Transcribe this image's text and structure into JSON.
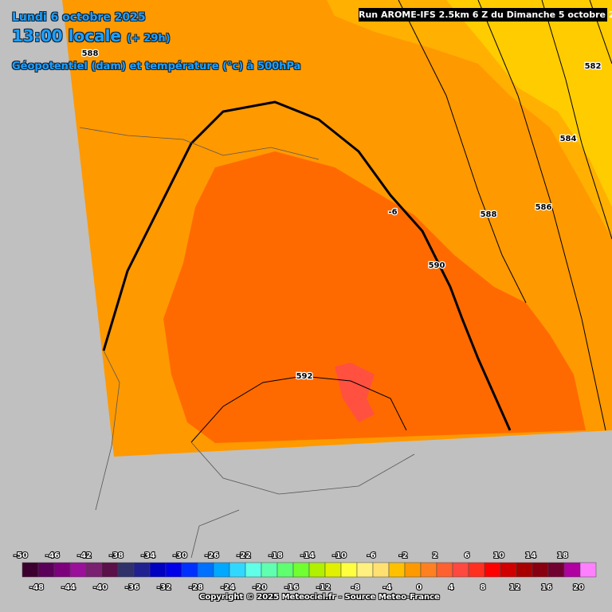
{
  "header": {
    "date": "Lundi 6 octobre 2025",
    "time": "13:00 locale",
    "lead": "(+ 29h)",
    "parameter": "Géopotentiel (dam) et température (°c) à 500hPa",
    "run": "Run AROME-IFS 2.5km 6 Z du Dimanche 5 octobre 2025"
  },
  "contour_labels": [
    {
      "text": "588"
    },
    {
      "text": "582"
    },
    {
      "text": "584"
    },
    {
      "text": "586"
    },
    {
      "text": "588"
    },
    {
      "text": "590"
    },
    {
      "text": "-6"
    },
    {
      "text": "592"
    }
  ],
  "legend": {
    "labels": [
      -50,
      -48,
      -46,
      -44,
      -42,
      -40,
      -38,
      -36,
      -34,
      -32,
      -30,
      -28,
      -26,
      -24,
      -22,
      -20,
      -18,
      -16,
      -14,
      -12,
      -10,
      -8,
      -6,
      -4,
      -2,
      0,
      2,
      4,
      6,
      8,
      10,
      12,
      14,
      16,
      18,
      20
    ],
    "colors": [
      "#3c0030",
      "#5a0058",
      "#7c007c",
      "#9a109a",
      "#7a2070",
      "#5a1048",
      "#30306a",
      "#202090",
      "#0000c0",
      "#0000e8",
      "#0030ff",
      "#0070ff",
      "#00a8ff",
      "#30d8ff",
      "#60ffe8",
      "#60ffb0",
      "#60ff70",
      "#70ff30",
      "#b0f000",
      "#e0f000",
      "#ffff40",
      "#fff080",
      "#ffe070",
      "#ffc000",
      "#ff9900",
      "#ff8020",
      "#ff6030",
      "#ff4840",
      "#ff3020",
      "#ff0000",
      "#d00000",
      "#a80000",
      "#880010",
      "#700030",
      "#b000a0",
      "#ff80ff"
    ]
  },
  "copyright": "Copyright © 2025 Meteociel.fr - Source Meteo-France"
}
